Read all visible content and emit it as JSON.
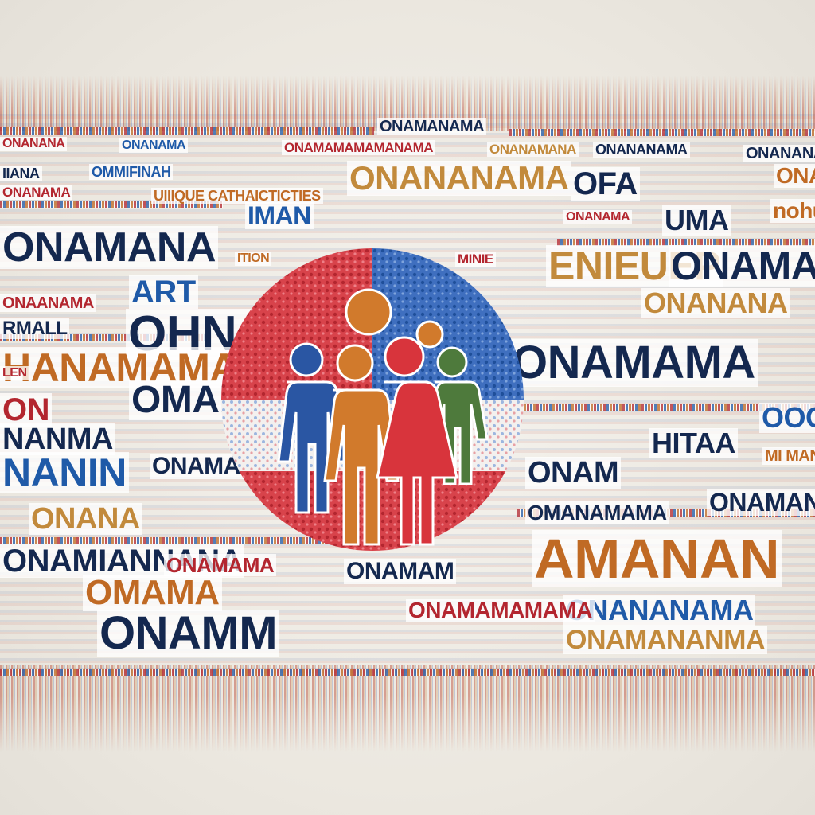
{
  "colors": {
    "navy": "#14284f",
    "blue": "#1f5aa8",
    "red": "#b3262f",
    "orange": "#c06a24",
    "tan": "#c28a3c",
    "green": "#4e7a3c",
    "background": "#efece6"
  },
  "emblem": {
    "icon": "family-group-icon",
    "figures": [
      "blue-adult",
      "orange-adult",
      "red-adult",
      "green-child"
    ]
  },
  "words": [
    "ONAMANAMA",
    "ONANANA",
    "ONANAMA",
    "ONAMAMAMAMANAMA",
    "ONANAMANA",
    "ONANANAMA",
    "ONANANAMA",
    "IIANA",
    "OMMIFINAH",
    "ONANANAMA",
    "OFA",
    "ONANAMAMA",
    "ONANAMA",
    "UIIIQUE CATHAICTICTIES",
    "IMAN",
    "UMA",
    "nohucah",
    "ONAMANA",
    "ONANAMA",
    "MINIE",
    "ITION",
    "ENIEUEP",
    "ONAMAIANAMA",
    "ART",
    "ONANANA",
    "OHNANIA",
    "ONAANAMA",
    "RMALL",
    "ONAMAMA",
    "HANAMAMA",
    "LEN",
    "OMAMEA",
    "ON",
    "OOONN",
    "NANMA",
    "HITAA",
    "NANIN",
    "ONAMAMAMA",
    "ONAM",
    "MI MANANANMA",
    "ONANA",
    "ONAMANA",
    "OMANAMAMA",
    "ONAMIANNANA",
    "ONAMAM",
    "AMANAN",
    "OMAMA",
    "ONAMAMA",
    "ONANANAMA",
    "ONAMM",
    "ONAMAMAMAMA",
    "ONAMANANMA"
  ]
}
